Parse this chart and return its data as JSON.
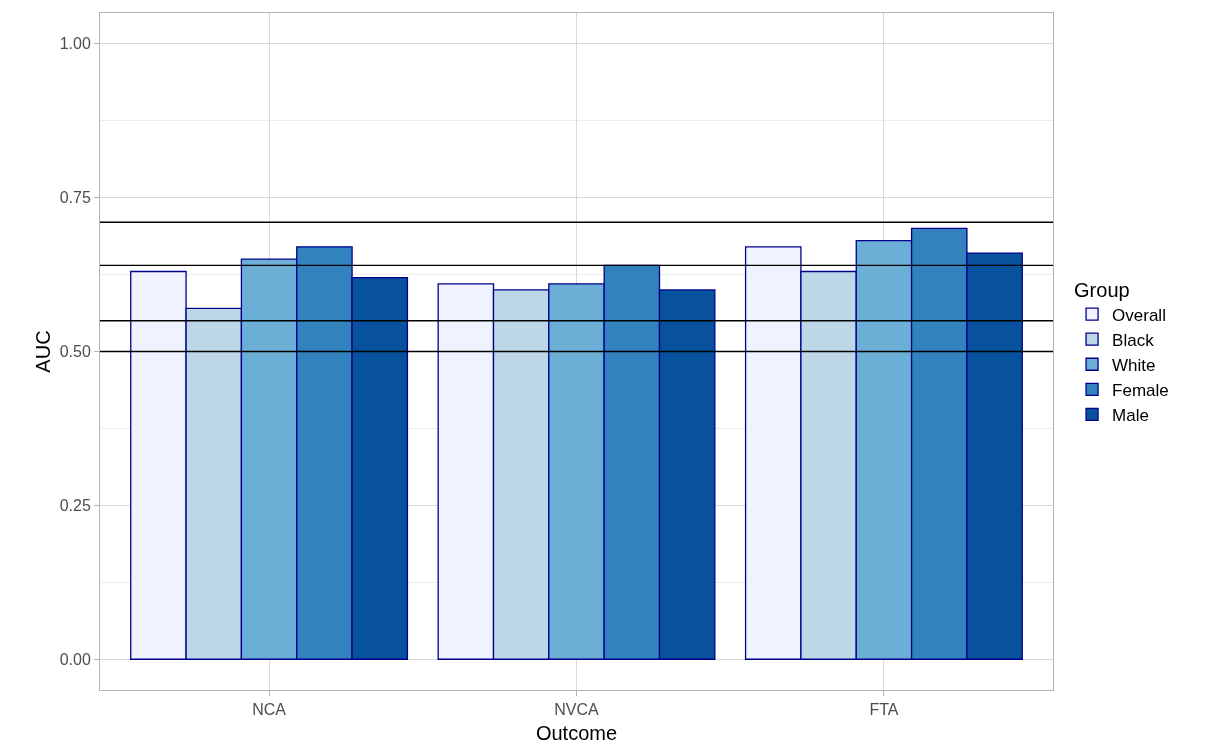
{
  "chart_data": {
    "type": "bar",
    "xlabel": "Outcome",
    "ylabel": "AUC",
    "legend_title": "Group",
    "categories": [
      "NCA",
      "NVCA",
      "FTA"
    ],
    "series": [
      {
        "name": "Overall",
        "color": "#eff3ff",
        "values": [
          0.63,
          0.61,
          0.67
        ]
      },
      {
        "name": "Black",
        "color": "#bdd7e7",
        "values": [
          0.57,
          0.6,
          0.63
        ]
      },
      {
        "name": "White",
        "color": "#6baed6",
        "values": [
          0.65,
          0.61,
          0.68
        ]
      },
      {
        "name": "Female",
        "color": "#3182bd",
        "values": [
          0.67,
          0.64,
          0.7
        ]
      },
      {
        "name": "Male",
        "color": "#08519c",
        "values": [
          0.62,
          0.6,
          0.66
        ]
      }
    ],
    "ylim": [
      -0.05,
      1.05
    ],
    "yticks": [
      {
        "value": 0,
        "label": "0.00"
      },
      {
        "value": 0.25,
        "label": "0.25"
      },
      {
        "value": 0.5,
        "label": "0.50"
      },
      {
        "value": 0.75,
        "label": "0.75"
      },
      {
        "value": 1,
        "label": "1.00"
      }
    ],
    "ref_lines": [
      {
        "axis": "y",
        "value": 0.71,
        "color": "#000000"
      },
      {
        "axis": "y",
        "value": 0.64,
        "color": "#000000"
      },
      {
        "axis": "y",
        "value": 0.55,
        "color": "#000000"
      },
      {
        "axis": "y",
        "value": 0.5,
        "color": "#000000"
      }
    ],
    "grid": true,
    "legend": "right"
  }
}
